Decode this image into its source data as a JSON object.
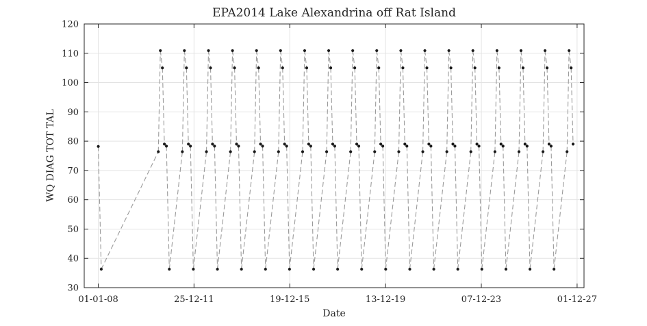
{
  "chart_data": {
    "type": "scatter",
    "title": "EPA2014 Lake Alexandrina off Rat Island",
    "xlabel": "Date",
    "ylabel": "WQ DIAG TOT TAL",
    "x_axis_type": "date",
    "xlim": [
      "2007-06-01",
      "2028-03-15"
    ],
    "ylim": [
      30,
      120
    ],
    "y_ticks": [
      30,
      40,
      50,
      60,
      70,
      80,
      90,
      100,
      110,
      120
    ],
    "x_ticks": [
      {
        "date": "2008-01-01",
        "label": "01-01-08"
      },
      {
        "date": "2011-12-25",
        "label": "25-12-11"
      },
      {
        "date": "2015-12-19",
        "label": "19-12-15"
      },
      {
        "date": "2019-12-13",
        "label": "13-12-19"
      },
      {
        "date": "2023-12-07",
        "label": "07-12-23"
      },
      {
        "date": "2027-12-01",
        "label": "01-12-27"
      }
    ],
    "grid": true,
    "line_style": "dashed",
    "line_color": "#9a9a9a",
    "marker_color": "#1a1a1a",
    "series": [
      {
        "points": [
          [
            "2008-01-01",
            78.2
          ],
          [
            "2008-02-15",
            36.3
          ],
          [
            "2010-07-01",
            76.4
          ],
          [
            "2010-08-01",
            110.9
          ],
          [
            "2010-09-01",
            105.0
          ],
          [
            "2010-10-01",
            79.0
          ],
          [
            "2010-11-01",
            78.3
          ],
          [
            "2010-12-15",
            36.3
          ],
          [
            "2011-07-01",
            76.4
          ],
          [
            "2011-08-01",
            110.9
          ],
          [
            "2011-09-01",
            105.0
          ],
          [
            "2011-10-01",
            79.0
          ],
          [
            "2011-11-01",
            78.3
          ],
          [
            "2011-12-15",
            36.3
          ],
          [
            "2012-07-01",
            76.4
          ],
          [
            "2012-08-01",
            110.9
          ],
          [
            "2012-09-01",
            105.0
          ],
          [
            "2012-10-01",
            79.0
          ],
          [
            "2012-11-01",
            78.3
          ],
          [
            "2012-12-15",
            36.3
          ],
          [
            "2013-07-01",
            76.4
          ],
          [
            "2013-08-01",
            110.9
          ],
          [
            "2013-09-01",
            105.0
          ],
          [
            "2013-10-01",
            79.0
          ],
          [
            "2013-11-01",
            78.3
          ],
          [
            "2013-12-15",
            36.3
          ],
          [
            "2014-07-01",
            76.4
          ],
          [
            "2014-08-01",
            110.9
          ],
          [
            "2014-09-01",
            105.0
          ],
          [
            "2014-10-01",
            79.0
          ],
          [
            "2014-11-01",
            78.3
          ],
          [
            "2014-12-15",
            36.3
          ],
          [
            "2015-07-01",
            76.4
          ],
          [
            "2015-08-01",
            110.9
          ],
          [
            "2015-09-01",
            105.0
          ],
          [
            "2015-10-01",
            79.0
          ],
          [
            "2015-11-01",
            78.3
          ],
          [
            "2015-12-15",
            36.3
          ],
          [
            "2016-07-01",
            76.4
          ],
          [
            "2016-08-01",
            110.9
          ],
          [
            "2016-09-01",
            105.0
          ],
          [
            "2016-10-01",
            79.0
          ],
          [
            "2016-11-01",
            78.3
          ],
          [
            "2016-12-15",
            36.3
          ],
          [
            "2017-07-01",
            76.4
          ],
          [
            "2017-08-01",
            110.9
          ],
          [
            "2017-09-01",
            105.0
          ],
          [
            "2017-10-01",
            79.0
          ],
          [
            "2017-11-01",
            78.3
          ],
          [
            "2017-12-15",
            36.3
          ],
          [
            "2018-07-01",
            76.4
          ],
          [
            "2018-08-01",
            110.9
          ],
          [
            "2018-09-01",
            105.0
          ],
          [
            "2018-10-01",
            79.0
          ],
          [
            "2018-11-01",
            78.3
          ],
          [
            "2018-12-15",
            36.3
          ],
          [
            "2019-07-01",
            76.4
          ],
          [
            "2019-08-01",
            110.9
          ],
          [
            "2019-09-01",
            105.0
          ],
          [
            "2019-10-01",
            79.0
          ],
          [
            "2019-11-01",
            78.3
          ],
          [
            "2019-12-15",
            36.3
          ],
          [
            "2020-07-01",
            76.4
          ],
          [
            "2020-08-01",
            110.9
          ],
          [
            "2020-09-01",
            105.0
          ],
          [
            "2020-10-01",
            79.0
          ],
          [
            "2020-11-01",
            78.3
          ],
          [
            "2020-12-15",
            36.3
          ],
          [
            "2021-07-01",
            76.4
          ],
          [
            "2021-08-01",
            110.9
          ],
          [
            "2021-09-01",
            105.0
          ],
          [
            "2021-10-01",
            79.0
          ],
          [
            "2021-11-01",
            78.3
          ],
          [
            "2021-12-15",
            36.3
          ],
          [
            "2022-07-01",
            76.4
          ],
          [
            "2022-08-01",
            110.9
          ],
          [
            "2022-09-01",
            105.0
          ],
          [
            "2022-10-01",
            79.0
          ],
          [
            "2022-11-01",
            78.3
          ],
          [
            "2022-12-15",
            36.3
          ],
          [
            "2023-07-01",
            76.4
          ],
          [
            "2023-08-01",
            110.9
          ],
          [
            "2023-09-01",
            105.0
          ],
          [
            "2023-10-01",
            79.0
          ],
          [
            "2023-11-01",
            78.3
          ],
          [
            "2023-12-15",
            36.3
          ],
          [
            "2024-07-01",
            76.4
          ],
          [
            "2024-08-01",
            110.9
          ],
          [
            "2024-09-01",
            105.0
          ],
          [
            "2024-10-01",
            79.0
          ],
          [
            "2024-11-01",
            78.3
          ],
          [
            "2024-12-15",
            36.3
          ],
          [
            "2025-07-01",
            76.4
          ],
          [
            "2025-08-01",
            110.9
          ],
          [
            "2025-09-01",
            105.0
          ],
          [
            "2025-10-01",
            79.0
          ],
          [
            "2025-11-01",
            78.3
          ],
          [
            "2025-12-15",
            36.3
          ],
          [
            "2026-07-01",
            76.4
          ],
          [
            "2026-08-01",
            110.9
          ],
          [
            "2026-09-01",
            105.0
          ],
          [
            "2026-10-01",
            79.0
          ],
          [
            "2026-11-01",
            78.3
          ],
          [
            "2026-12-15",
            36.3
          ],
          [
            "2027-07-01",
            76.4
          ],
          [
            "2027-08-01",
            110.9
          ],
          [
            "2027-09-01",
            105.0
          ],
          [
            "2027-10-01",
            79.0
          ]
        ]
      }
    ]
  }
}
